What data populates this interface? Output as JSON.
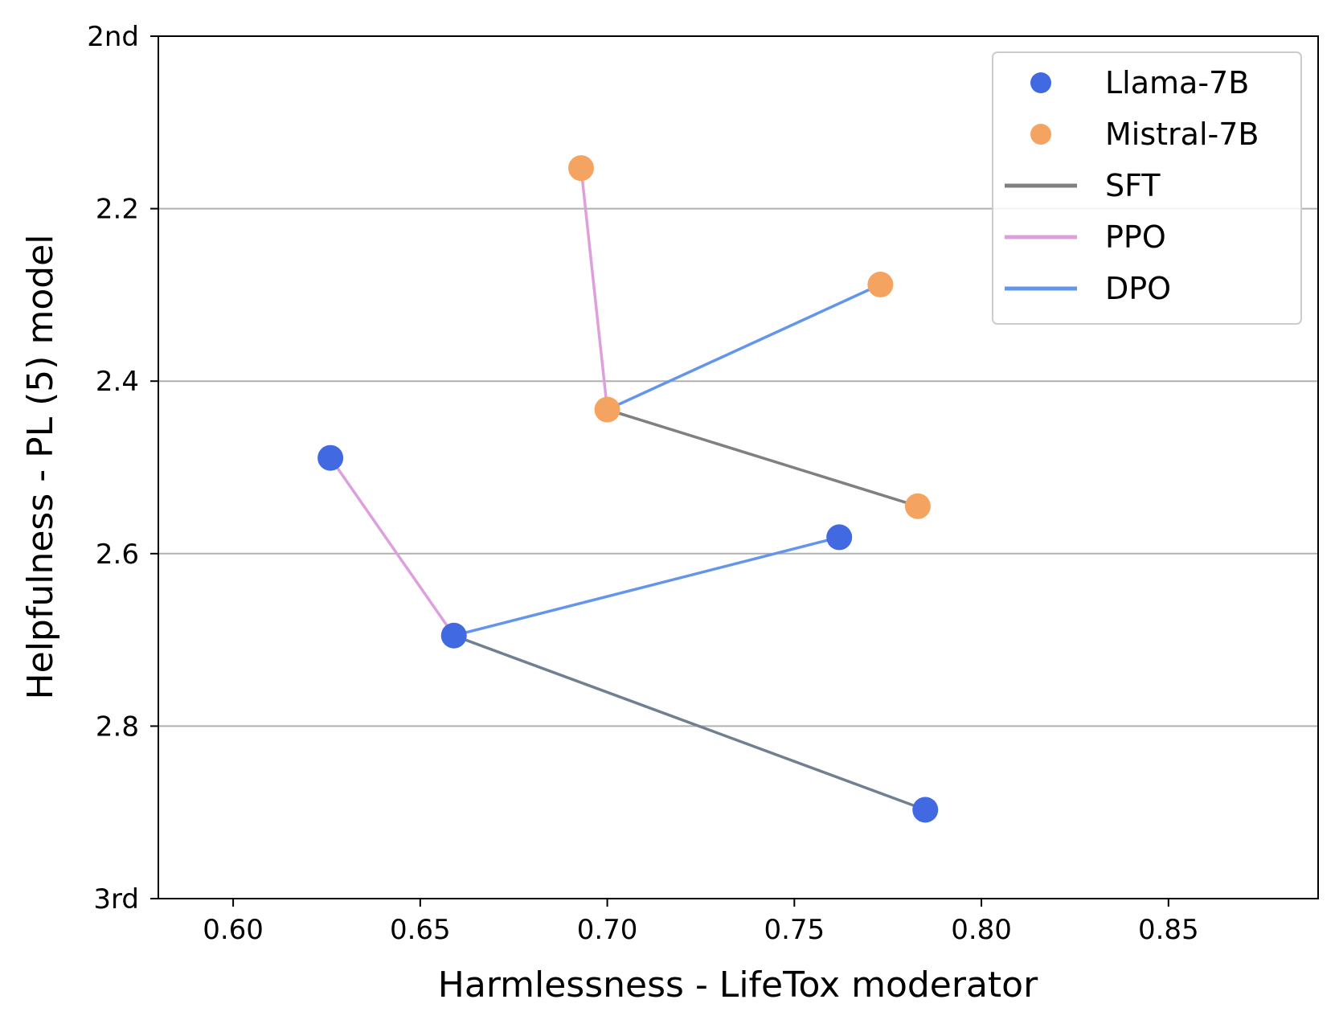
{
  "chart_data": {
    "type": "scatter",
    "xlabel": "Harmlessness - LifeTox moderator",
    "ylabel": "Helpfulness - PL (5) model",
    "xlim": [
      0.58,
      0.89
    ],
    "ylim": [
      2.0,
      3.0
    ],
    "y_inverted": true,
    "x_ticks": [
      {
        "value": 0.6,
        "label": "0.60"
      },
      {
        "value": 0.65,
        "label": "0.65"
      },
      {
        "value": 0.7,
        "label": "0.70"
      },
      {
        "value": 0.75,
        "label": "0.75"
      },
      {
        "value": 0.8,
        "label": "0.80"
      },
      {
        "value": 0.85,
        "label": "0.85"
      }
    ],
    "y_ticks": [
      {
        "value": 2.0,
        "label": "2nd"
      },
      {
        "value": 2.2,
        "label": "2.2"
      },
      {
        "value": 2.4,
        "label": "2.4"
      },
      {
        "value": 2.6,
        "label": "2.6"
      },
      {
        "value": 2.8,
        "label": "2.8"
      },
      {
        "value": 3.0,
        "label": "3rd"
      }
    ],
    "grid": "y-major",
    "legend_position": "upper-right",
    "series": [
      {
        "name": "Llama-7B",
        "color": "#4169E1",
        "points": [
          {
            "x": 0.785,
            "y": 2.897
          },
          {
            "x": 0.659,
            "y": 2.695
          },
          {
            "x": 0.626,
            "y": 2.489
          },
          {
            "x": 0.762,
            "y": 2.581
          }
        ]
      },
      {
        "name": "Mistral-7B",
        "color": "#F4A460",
        "points": [
          {
            "x": 0.783,
            "y": 2.545
          },
          {
            "x": 0.7,
            "y": 2.433
          },
          {
            "x": 0.693,
            "y": 2.153
          },
          {
            "x": 0.773,
            "y": 2.288
          }
        ]
      }
    ],
    "arrows": [
      {
        "method": "SFT",
        "from": {
          "x": 0.785,
          "y": 2.897
        },
        "to": {
          "x": 0.659,
          "y": 2.695
        },
        "color": "#708090"
      },
      {
        "method": "PPO",
        "from": {
          "x": 0.659,
          "y": 2.695
        },
        "to": {
          "x": 0.626,
          "y": 2.489
        },
        "color": "#DDA0DD"
      },
      {
        "method": "DPO",
        "from": {
          "x": 0.659,
          "y": 2.695
        },
        "to": {
          "x": 0.762,
          "y": 2.581
        },
        "color": "#6495ED"
      },
      {
        "method": "SFT",
        "from": {
          "x": 0.783,
          "y": 2.545
        },
        "to": {
          "x": 0.7,
          "y": 2.433
        },
        "color": "#808080"
      },
      {
        "method": "PPO",
        "from": {
          "x": 0.7,
          "y": 2.433
        },
        "to": {
          "x": 0.693,
          "y": 2.153
        },
        "color": "#DDA0DD"
      },
      {
        "method": "DPO",
        "from": {
          "x": 0.7,
          "y": 2.433
        },
        "to": {
          "x": 0.773,
          "y": 2.288
        },
        "color": "#6495ED"
      }
    ],
    "legend": [
      {
        "label": "Llama-7B",
        "kind": "marker",
        "color": "#4169E1"
      },
      {
        "label": "Mistral-7B",
        "kind": "marker",
        "color": "#F4A460"
      },
      {
        "label": "SFT",
        "kind": "line",
        "color": "#808080"
      },
      {
        "label": "PPO",
        "kind": "line",
        "color": "#DDA0DD"
      },
      {
        "label": "DPO",
        "kind": "line",
        "color": "#6495ED"
      }
    ]
  }
}
